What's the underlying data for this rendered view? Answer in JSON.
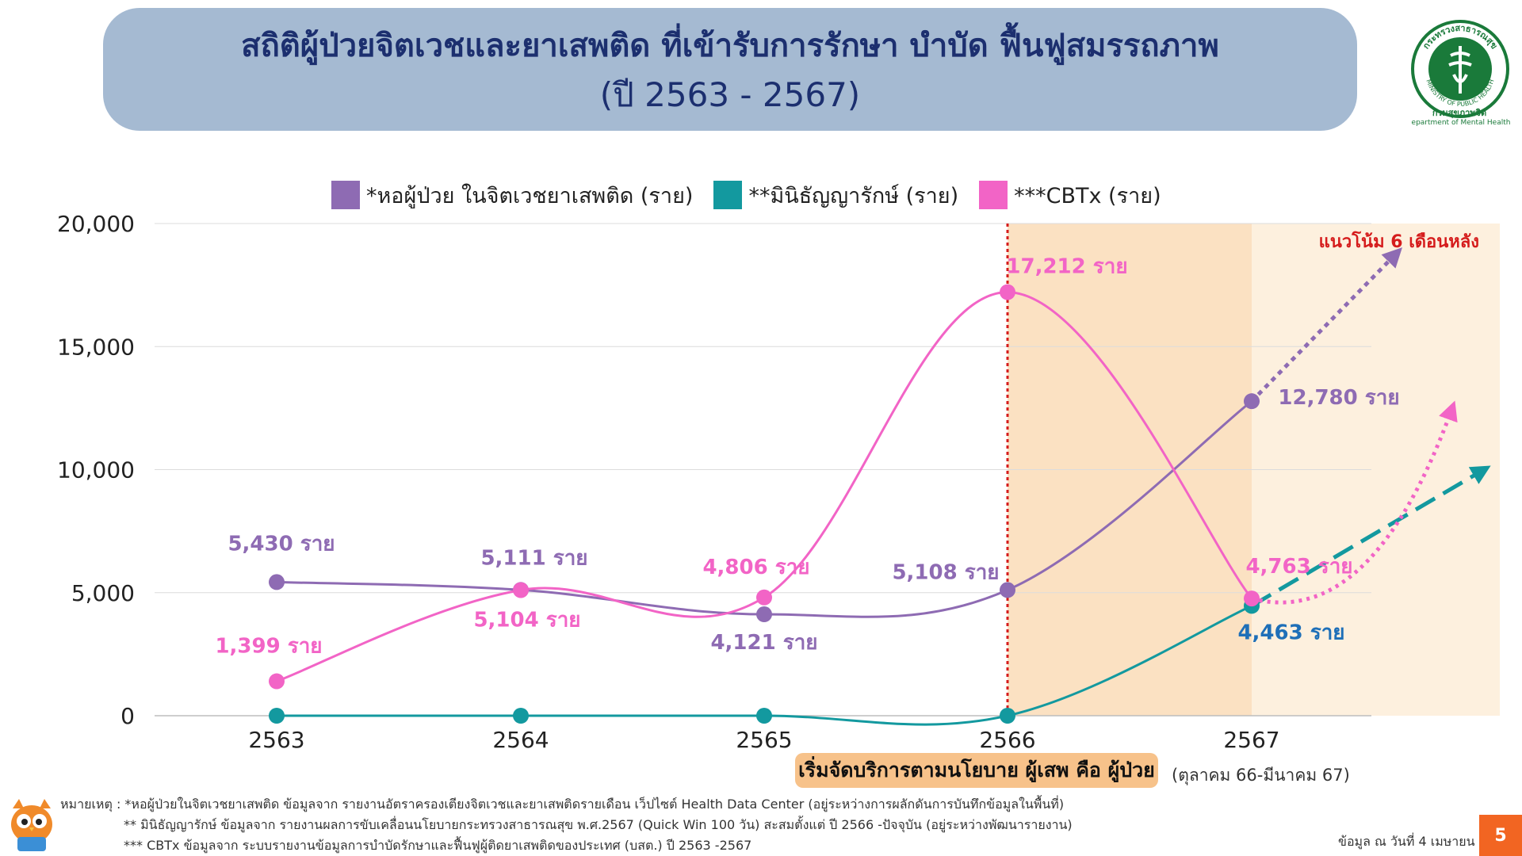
{
  "title": {
    "line1": "สถิติผู้ป่วยจิตเวชและยาเสพติด ที่เข้ารับการรักษา บำบัด ฟื้นฟูสมรรถภาพ",
    "line2": "(ปี 2563 - 2567)"
  },
  "logo": {
    "ring_text": "กระทรวงสาธารณสุข",
    "ring_text_en": "MINISTRY OF PUBLIC HEALTH",
    "caption_th": "กรมสุขภาพจิต",
    "caption_en": "epartment of Mental Health"
  },
  "colors": {
    "purple": "#8e6bb3",
    "teal": "#13999f",
    "pink": "#f264c6",
    "shade": "#fbe1c2",
    "shade_light": "#fdf0de",
    "policy_line": "#d51c1c",
    "title_bg": "#a5bad2",
    "title_text": "#1c2f6f"
  },
  "chart_data": {
    "type": "line",
    "categories": [
      "2563",
      "2564",
      "2565",
      "2566",
      "2567"
    ],
    "ylim": [
      0,
      20000
    ],
    "yticks": [
      "0",
      "5,000",
      "10,000",
      "15,000",
      "20,000"
    ],
    "grid": true,
    "series": [
      {
        "name": "*หอผู้ป่วย ในจิตเวชยาเสพติด (ราย)",
        "color": "#8e6bb3",
        "values": [
          5430,
          5111,
          4121,
          5108,
          12780
        ],
        "labels": [
          "5,430 ราย",
          "5,111 ราย",
          "4,121 ราย",
          "5,108 ราย",
          "12,780 ราย"
        ]
      },
      {
        "name": "**มินิธัญญารักษ์ (ราย)",
        "color": "#13999f",
        "values": [
          0,
          0,
          0,
          0,
          4463
        ],
        "labels": [
          "",
          "",
          "",
          "",
          "4,463 ราย"
        ]
      },
      {
        "name": "***CBTx (ราย)",
        "color": "#f264c6",
        "values": [
          1399,
          5104,
          4806,
          17212,
          4763
        ],
        "labels": [
          "1,399 ราย",
          "5,104 ราย",
          "4,806 ราย",
          "17,212 ราย",
          "4,763 ราย"
        ]
      }
    ],
    "trend_label": "แนวโน้ม 6 เดือนหลัง",
    "trend_targets": [
      {
        "series": "purple",
        "value": 18800
      },
      {
        "series": "teal",
        "value": 10000
      },
      {
        "series": "pink",
        "value": 12500
      }
    ],
    "policy_start_category": "2566"
  },
  "policy": {
    "badge": "เริ่มจัดบริการตามนโยบาย ผู้เสพ คือ ผู้ป่วย",
    "period": "(ตุลาคม 66-มีนาคม 67)"
  },
  "notes": [
    "หมายเหตุ : *หอผู้ป่วยในจิตเวชยาเสพติด ข้อมูลจาก รายงานอัตราครองเตียงจิตเวชและยาเสพติดรายเดือน เว็ปไซต์ Health Data Center  (อยู่ระหว่างการผลักดันการบันทึกข้อมูลในพื้นที่)",
    "** มินิธัญญารักษ์ ข้อมูลจาก รายงานผลการขับเคลื่อนนโยบายกระทรวงสาธารณสุข พ.ศ.2567 (Quick Win 100 วัน)  สะสมตั้งแต่ ปี 2566 -ปัจจุบัน (อยู่ระหว่างพัฒนารายงาน)",
    "*** CBTx ข้อมูลจาก ระบบรายงานข้อมูลการบำบัดรักษาและฟื้นฟูผู้ติดยาเสพติดของประเทศ (บสต.) ปี 2563 -2567"
  ],
  "datestamp": "ข้อมูล ณ วันที่ 4 เมษายน",
  "page_number": "5"
}
